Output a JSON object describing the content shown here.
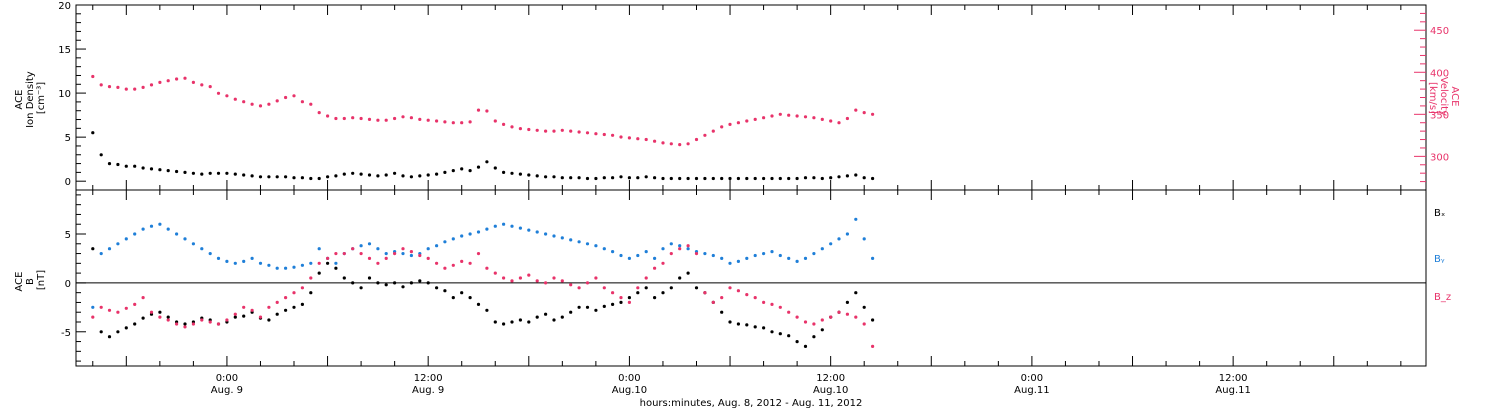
{
  "colors": {
    "black": "#000000",
    "pink": "#e8336a",
    "blue": "#1f7fd8"
  },
  "chart_data": [
    {
      "type": "scatter",
      "ylabel_left": [
        "ACE",
        "Ion Density",
        "[cm⁻³]"
      ],
      "ylabel_right": [
        "ACE",
        "Velocity",
        "[km/s]"
      ],
      "ylim_left": [
        -1,
        20
      ],
      "ylim_right": [
        260,
        480
      ],
      "yticks_left": [
        "0",
        "5",
        "10",
        "15",
        "20"
      ],
      "yticks_right": [
        "300",
        "350",
        "400",
        "450"
      ],
      "series": [
        {
          "axis": "left",
          "color": "black",
          "x": [
            0,
            1,
            2,
            3,
            4,
            5,
            6,
            7,
            8,
            9,
            10,
            11,
            12,
            13,
            14,
            15,
            16,
            17,
            18,
            19,
            20,
            21,
            22,
            23,
            24,
            25,
            26,
            27,
            28,
            29,
            30,
            31,
            32,
            33,
            34,
            35,
            36,
            37,
            38,
            39,
            40,
            41,
            42,
            43,
            44,
            45,
            46,
            47,
            48,
            49,
            50,
            51,
            52,
            53,
            54,
            55,
            56,
            57,
            58,
            59,
            60,
            61,
            62,
            63,
            64,
            65,
            66,
            67,
            68,
            69,
            70,
            71,
            72,
            73,
            74,
            75,
            76,
            77,
            78,
            79,
            80,
            81,
            82,
            83,
            84,
            85,
            86,
            87,
            88,
            89,
            90,
            91,
            92,
            93
          ],
          "y": [
            5.5,
            3.0,
            2.0,
            1.9,
            1.7,
            1.7,
            1.5,
            1.4,
            1.3,
            1.2,
            1.1,
            1.0,
            0.9,
            0.8,
            0.9,
            0.9,
            0.9,
            0.8,
            0.7,
            0.6,
            0.5,
            0.5,
            0.5,
            0.5,
            0.4,
            0.4,
            0.3,
            0.3,
            0.5,
            0.6,
            0.8,
            0.9,
            0.8,
            0.7,
            0.6,
            0.7,
            0.9,
            0.6,
            0.5,
            0.6,
            0.7,
            0.8,
            1.0,
            1.2,
            1.4,
            1.2,
            1.6,
            2.2,
            1.5,
            1.0,
            0.9,
            0.8,
            0.7,
            0.6,
            0.5,
            0.5,
            0.4,
            0.4,
            0.4,
            0.3,
            0.3,
            0.4,
            0.4,
            0.5,
            0.4,
            0.4,
            0.5,
            0.4,
            0.3,
            0.3,
            0.3,
            0.3,
            0.3,
            0.3,
            0.3,
            0.3,
            0.3,
            0.3,
            0.3,
            0.3,
            0.3,
            0.3,
            0.3,
            0.3,
            0.3,
            0.4,
            0.4,
            0.3,
            0.4,
            0.5,
            0.6,
            0.7,
            0.4,
            0.3
          ]
        },
        {
          "axis": "right",
          "color": "pink",
          "x": [
            0,
            1,
            2,
            3,
            4,
            5,
            6,
            7,
            8,
            9,
            10,
            11,
            12,
            13,
            14,
            15,
            16,
            17,
            18,
            19,
            20,
            21,
            22,
            23,
            24,
            25,
            26,
            27,
            28,
            29,
            30,
            31,
            32,
            33,
            34,
            35,
            36,
            37,
            38,
            39,
            40,
            41,
            42,
            43,
            44,
            45,
            46,
            47,
            48,
            49,
            50,
            51,
            52,
            53,
            54,
            55,
            56,
            57,
            58,
            59,
            60,
            61,
            62,
            63,
            64,
            65,
            66,
            67,
            68,
            69,
            70,
            71,
            72,
            73,
            74,
            75,
            76,
            77,
            78,
            79,
            80,
            81,
            82,
            83,
            84,
            85,
            86,
            87,
            88,
            89,
            90,
            91,
            92,
            93
          ],
          "y": [
            395,
            385,
            383,
            382,
            380,
            380,
            382,
            385,
            388,
            390,
            392,
            393,
            388,
            385,
            383,
            375,
            372,
            368,
            365,
            362,
            360,
            362,
            366,
            370,
            372,
            365,
            362,
            352,
            348,
            345,
            345,
            346,
            345,
            344,
            343,
            343,
            345,
            347,
            346,
            344,
            343,
            342,
            341,
            340,
            340,
            341,
            355,
            354,
            342,
            338,
            335,
            333,
            332,
            331,
            330,
            330,
            331,
            330,
            329,
            328,
            327,
            326,
            325,
            323,
            322,
            321,
            320,
            318,
            316,
            315,
            314,
            315,
            320,
            325,
            330,
            335,
            338,
            340,
            342,
            344,
            346,
            348,
            350,
            349,
            348,
            347,
            346,
            344,
            342,
            340,
            345,
            355,
            352,
            350
          ]
        }
      ]
    },
    {
      "type": "scatter",
      "ylabel_left": [
        "ACE",
        "B",
        "[nT]"
      ],
      "ylim_left": [
        -8.5,
        9.5
      ],
      "yticks_left": [
        "-5",
        "0",
        "5"
      ],
      "zero_line": true,
      "legend": [
        "Bₓ",
        "Bᵧ",
        "B_z"
      ],
      "legend_colors": [
        "black",
        "blue",
        "pink"
      ],
      "series": [
        {
          "name": "Bₓ",
          "color": "black",
          "x": [
            0,
            1,
            2,
            3,
            4,
            5,
            6,
            7,
            8,
            9,
            10,
            11,
            12,
            13,
            14,
            15,
            16,
            17,
            18,
            19,
            20,
            21,
            22,
            23,
            24,
            25,
            26,
            27,
            28,
            29,
            30,
            31,
            32,
            33,
            34,
            35,
            36,
            37,
            38,
            39,
            40,
            41,
            42,
            43,
            44,
            45,
            46,
            47,
            48,
            49,
            50,
            51,
            52,
            53,
            54,
            55,
            56,
            57,
            58,
            59,
            60,
            61,
            62,
            63,
            64,
            65,
            66,
            67,
            68,
            69,
            70,
            71,
            72,
            73,
            74,
            75,
            76,
            77,
            78,
            79,
            80,
            81,
            82,
            83,
            84,
            85,
            86,
            87,
            88,
            89,
            90,
            91,
            92,
            93
          ],
          "y": [
            3.5,
            -5.0,
            -5.5,
            -5.0,
            -4.6,
            -4.2,
            -3.6,
            -3.2,
            -3.0,
            -3.5,
            -4.0,
            -4.2,
            -4.0,
            -3.6,
            -3.8,
            -4.2,
            -4.0,
            -3.5,
            -3.4,
            -3.0,
            -3.6,
            -3.8,
            -3.2,
            -2.8,
            -2.5,
            -2.2,
            -1.0,
            1.0,
            2.0,
            1.5,
            0.5,
            0.0,
            -0.5,
            0.5,
            0.0,
            -0.2,
            0.0,
            -0.4,
            0.0,
            0.2,
            0.0,
            -0.5,
            -0.8,
            -1.5,
            -1.0,
            -1.5,
            -2.2,
            -2.8,
            -4.0,
            -4.2,
            -4.0,
            -3.8,
            -4.0,
            -3.5,
            -3.2,
            -3.8,
            -3.5,
            -3.0,
            -2.5,
            -2.5,
            -2.8,
            -2.4,
            -2.2,
            -2.0,
            -1.5,
            -1.0,
            -0.5,
            -1.5,
            -1.0,
            -0.5,
            0.5,
            1.0,
            -0.5,
            -1.0,
            -2.0,
            -3.0,
            -4.0,
            -4.2,
            -4.3,
            -4.5,
            -4.6,
            -5.0,
            -5.2,
            -5.4,
            -6.0,
            -6.5,
            -5.5,
            -4.8,
            -3.5,
            -3.0,
            -2.0,
            -1.0,
            -2.5,
            -3.8
          ]
        },
        {
          "name": "Bᵧ",
          "color": "blue",
          "x": [
            0,
            1,
            2,
            3,
            4,
            5,
            6,
            7,
            8,
            9,
            10,
            11,
            12,
            13,
            14,
            15,
            16,
            17,
            18,
            19,
            20,
            21,
            22,
            23,
            24,
            25,
            26,
            27,
            28,
            29,
            30,
            31,
            32,
            33,
            34,
            35,
            36,
            37,
            38,
            39,
            40,
            41,
            42,
            43,
            44,
            45,
            46,
            47,
            48,
            49,
            50,
            51,
            52,
            53,
            54,
            55,
            56,
            57,
            58,
            59,
            60,
            61,
            62,
            63,
            64,
            65,
            66,
            67,
            68,
            69,
            70,
            71,
            72,
            73,
            74,
            75,
            76,
            77,
            78,
            79,
            80,
            81,
            82,
            83,
            84,
            85,
            86,
            87,
            88,
            89,
            90,
            91,
            92,
            93
          ],
          "y": [
            -2.5,
            3.0,
            3.5,
            4.0,
            4.5,
            5.0,
            5.5,
            5.8,
            6.0,
            5.5,
            5.0,
            4.5,
            4.0,
            3.5,
            3.0,
            2.5,
            2.2,
            2.0,
            2.2,
            2.5,
            2.0,
            1.8,
            1.5,
            1.5,
            1.6,
            1.8,
            2.0,
            3.5,
            2.5,
            2.0,
            3.0,
            3.5,
            3.8,
            4.0,
            3.5,
            3.0,
            3.2,
            3.0,
            2.8,
            3.0,
            3.5,
            3.8,
            4.2,
            4.5,
            4.8,
            5.0,
            5.2,
            5.5,
            5.8,
            6.0,
            5.8,
            5.6,
            5.4,
            5.2,
            5.0,
            4.8,
            4.6,
            4.4,
            4.2,
            4.0,
            3.8,
            3.5,
            3.2,
            2.8,
            2.5,
            2.8,
            3.2,
            2.5,
            3.5,
            4.0,
            3.8,
            3.5,
            3.2,
            3.0,
            2.8,
            2.5,
            2.0,
            2.2,
            2.5,
            2.8,
            3.0,
            3.2,
            2.8,
            2.5,
            2.2,
            2.5,
            3.0,
            3.5,
            4.0,
            4.5,
            5.0,
            6.5,
            4.5,
            2.5
          ]
        },
        {
          "name": "B_z",
          "color": "pink",
          "x": [
            0,
            1,
            2,
            3,
            4,
            5,
            6,
            7,
            8,
            9,
            10,
            11,
            12,
            13,
            14,
            15,
            16,
            17,
            18,
            19,
            20,
            21,
            22,
            23,
            24,
            25,
            26,
            27,
            28,
            29,
            30,
            31,
            32,
            33,
            34,
            35,
            36,
            37,
            38,
            39,
            40,
            41,
            42,
            43,
            44,
            45,
            46,
            47,
            48,
            49,
            50,
            51,
            52,
            53,
            54,
            55,
            56,
            57,
            58,
            59,
            60,
            61,
            62,
            63,
            64,
            65,
            66,
            67,
            68,
            69,
            70,
            71,
            72,
            73,
            74,
            75,
            76,
            77,
            78,
            79,
            80,
            81,
            82,
            83,
            84,
            85,
            86,
            87,
            88,
            89,
            90,
            91,
            92,
            93
          ],
          "y": [
            -3.5,
            -2.5,
            -2.8,
            -3.0,
            -2.6,
            -2.2,
            -1.5,
            -3.0,
            -3.5,
            -3.8,
            -4.2,
            -4.5,
            -4.2,
            -3.8,
            -4.0,
            -4.2,
            -3.8,
            -3.2,
            -2.5,
            -2.8,
            -3.5,
            -2.5,
            -2.0,
            -1.5,
            -1.0,
            -0.5,
            0.5,
            2.0,
            2.5,
            3.0,
            3.0,
            3.5,
            3.0,
            2.5,
            2.0,
            2.5,
            3.0,
            3.5,
            3.2,
            2.8,
            2.5,
            2.0,
            1.5,
            1.8,
            2.2,
            2.0,
            3.0,
            1.5,
            1.0,
            0.5,
            0.2,
            0.5,
            0.8,
            0.2,
            0.0,
            0.5,
            0.2,
            -0.2,
            -0.5,
            0.0,
            0.5,
            -0.5,
            -1.0,
            -1.5,
            -2.0,
            -0.5,
            0.5,
            1.5,
            2.0,
            3.0,
            3.5,
            3.8,
            3.0,
            -1.0,
            -2.0,
            -1.5,
            -0.5,
            -0.8,
            -1.2,
            -1.5,
            -2.0,
            -2.2,
            -2.5,
            -3.0,
            -3.5,
            -4.0,
            -4.2,
            -3.8,
            -3.5,
            -3.0,
            -3.2,
            -3.5,
            -4.2,
            -6.5
          ]
        }
      ]
    }
  ],
  "x_axis": {
    "ticks": [
      {
        "x": 16,
        "time": "0:00",
        "date": "Aug. 9"
      },
      {
        "x": 40,
        "time": "12:00",
        "date": "Aug. 9"
      },
      {
        "x": 64,
        "time": "0:00",
        "date": "Aug.10"
      },
      {
        "x": 88,
        "time": "12:00",
        "date": "Aug.10"
      },
      {
        "x": 112,
        "time": "0:00",
        "date": "Aug.11"
      },
      {
        "x": 136,
        "time": "12:00",
        "date": "Aug.11"
      }
    ],
    "xlim": [
      -2,
      159
    ],
    "xlabel": "hours:minutes, Aug.  8, 2012 - Aug. 11, 2012"
  }
}
